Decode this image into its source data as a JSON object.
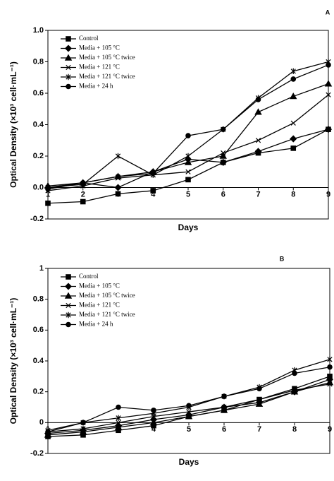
{
  "chart_data": [
    {
      "type": "line",
      "panel": "A",
      "xlabel": "Days",
      "ylabel": "Optical Density (×10³ cell·mL⁻¹)",
      "x": [
        1,
        2,
        3,
        4,
        5,
        6,
        7,
        8,
        9
      ],
      "xlim": [
        1,
        9
      ],
      "xticks": [
        1,
        2,
        3,
        4,
        5,
        6,
        7,
        8,
        9
      ],
      "ylim": [
        -0.2,
        1.0
      ],
      "yticks": [
        -0.2,
        {
          "value": 0,
          "label": "0.0"
        },
        0.2,
        0.4,
        0.6,
        0.8,
        {
          "value": 1,
          "label": "1.0"
        }
      ],
      "legend": "top-left",
      "series": [
        {
          "name": "Control",
          "color": "#000000",
          "marker": "square",
          "values": [
            -0.1,
            -0.09,
            -0.04,
            -0.02,
            0.05,
            0.16,
            0.22,
            0.25,
            0.37
          ]
        },
        {
          "name": "Media + 105 °C",
          "color": "#000000",
          "marker": "diamond",
          "values": [
            0.0,
            0.03,
            0.0,
            0.1,
            0.18,
            0.16,
            0.23,
            0.31,
            0.37
          ]
        },
        {
          "name": "Media + 105 °C twice",
          "color": "#000000",
          "marker": "triangle",
          "values": [
            0.01,
            0.03,
            0.07,
            0.1,
            0.16,
            0.2,
            0.48,
            0.58,
            0.66
          ]
        },
        {
          "name": "Media + 121 °C",
          "color": "#000000",
          "marker": "x",
          "values": [
            -0.02,
            0.01,
            0.06,
            0.08,
            0.1,
            0.22,
            0.3,
            0.41,
            0.59
          ]
        },
        {
          "name": "Media + 121 °C twice",
          "color": "#000000",
          "marker": "asterisk",
          "values": [
            0.0,
            0.02,
            0.2,
            0.08,
            0.2,
            0.37,
            0.57,
            0.74,
            0.8
          ]
        },
        {
          "name": "Media + 24 h",
          "color": "#000000",
          "marker": "circle",
          "values": [
            -0.01,
            0.03,
            0.07,
            0.09,
            0.33,
            0.37,
            0.56,
            0.69,
            0.78
          ]
        }
      ]
    },
    {
      "type": "line",
      "panel": "B",
      "xlabel": "Days",
      "ylabel": "Optical Density (×10³ cell·mL⁻¹)",
      "x": [
        1,
        2,
        3,
        4,
        5,
        6,
        7,
        8,
        9
      ],
      "xlim": [
        1,
        9
      ],
      "xticks": [
        1,
        2,
        3,
        4,
        5,
        6,
        7,
        8,
        9
      ],
      "ylim": [
        -0.2,
        1
      ],
      "yticks": [
        -0.2,
        0,
        0.2,
        0.4,
        0.6,
        0.8,
        1
      ],
      "legend": "top-left",
      "series": [
        {
          "name": "Control",
          "color": "#000000",
          "marker": "square",
          "values": [
            -0.09,
            -0.08,
            -0.05,
            -0.02,
            0.04,
            0.08,
            0.15,
            0.22,
            0.3
          ]
        },
        {
          "name": "Media + 105 °C",
          "color": "#000000",
          "marker": "diamond",
          "values": [
            -0.07,
            -0.05,
            -0.02,
            0.02,
            0.05,
            0.1,
            0.13,
            0.2,
            0.28
          ]
        },
        {
          "name": "Media + 105 °C twice",
          "color": "#000000",
          "marker": "triangle",
          "values": [
            -0.08,
            -0.06,
            -0.03,
            0.0,
            0.04,
            0.08,
            0.12,
            0.2,
            0.26
          ]
        },
        {
          "name": "Media + 121 °C",
          "color": "#000000",
          "marker": "x",
          "values": [
            -0.06,
            -0.04,
            0.0,
            0.04,
            0.07,
            0.1,
            0.15,
            0.21,
            0.25
          ]
        },
        {
          "name": "Media + 121 °C twice",
          "color": "#000000",
          "marker": "asterisk",
          "values": [
            -0.05,
            0.0,
            0.03,
            0.06,
            0.1,
            0.17,
            0.23,
            0.34,
            0.41
          ]
        },
        {
          "name": "Media + 24 h",
          "color": "#000000",
          "marker": "circle",
          "values": [
            -0.06,
            0.0,
            0.1,
            0.08,
            0.11,
            0.17,
            0.22,
            0.32,
            0.36
          ]
        }
      ]
    }
  ]
}
